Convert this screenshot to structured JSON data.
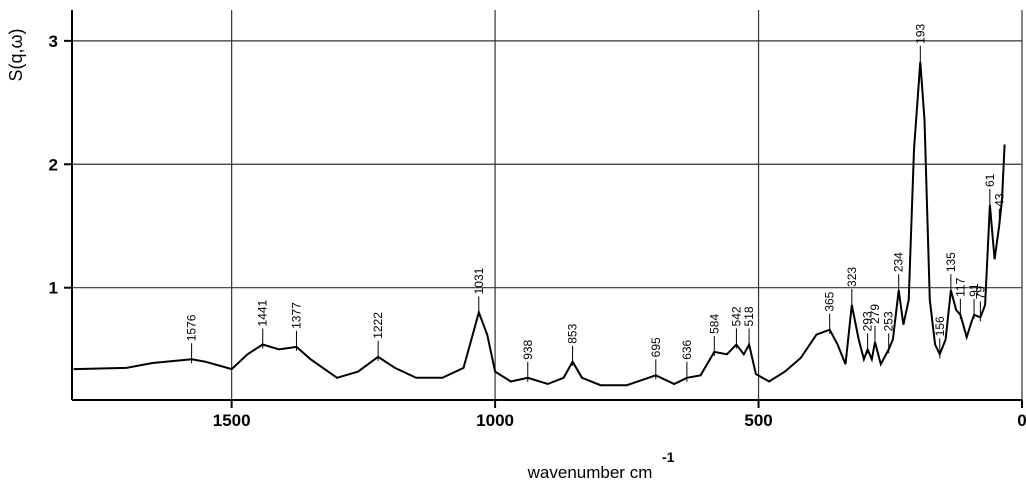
{
  "chart_data": {
    "type": "line",
    "y_label": "S(q,ω)",
    "x_label": "wavenumber cm",
    "x_label_superscript": "-1",
    "xlim": [
      1803,
      0
    ],
    "ylim": [
      0.09,
      3.25
    ],
    "xticks": [
      1500,
      1000,
      500,
      0
    ],
    "yticks": [
      1,
      2,
      3
    ],
    "grid": true,
    "color": "#000000",
    "x": [
      1800,
      1700,
      1650,
      1576,
      1550,
      1500,
      1470,
      1441,
      1410,
      1377,
      1350,
      1300,
      1260,
      1222,
      1190,
      1150,
      1100,
      1060,
      1045,
      1031,
      1015,
      1000,
      970,
      938,
      900,
      870,
      853,
      835,
      800,
      750,
      695,
      660,
      636,
      610,
      584,
      560,
      542,
      528,
      518,
      505,
      480,
      450,
      420,
      390,
      365,
      350,
      335,
      323,
      310,
      300,
      293,
      285,
      279,
      268,
      253,
      245,
      234,
      225,
      215,
      205,
      193,
      185,
      175,
      165,
      156,
      145,
      135,
      125,
      117,
      105,
      96,
      91,
      79,
      70,
      61,
      52,
      43,
      38,
      33
    ],
    "values": [
      0.34,
      0.35,
      0.39,
      0.42,
      0.4,
      0.34,
      0.46,
      0.54,
      0.5,
      0.52,
      0.42,
      0.27,
      0.32,
      0.44,
      0.35,
      0.27,
      0.27,
      0.35,
      0.58,
      0.8,
      0.62,
      0.32,
      0.24,
      0.27,
      0.22,
      0.27,
      0.4,
      0.27,
      0.21,
      0.21,
      0.29,
      0.22,
      0.27,
      0.29,
      0.48,
      0.46,
      0.54,
      0.46,
      0.54,
      0.3,
      0.24,
      0.32,
      0.43,
      0.62,
      0.66,
      0.54,
      0.38,
      0.86,
      0.58,
      0.42,
      0.5,
      0.42,
      0.56,
      0.38,
      0.5,
      0.58,
      0.98,
      0.7,
      0.9,
      2.12,
      2.83,
      2.36,
      0.9,
      0.54,
      0.46,
      0.58,
      0.98,
      0.82,
      0.78,
      0.6,
      0.72,
      0.78,
      0.76,
      0.86,
      1.67,
      1.23,
      1.51,
      1.71,
      2.16
    ],
    "peak_labels": [
      1576,
      1441,
      1377,
      1222,
      1031,
      938,
      853,
      695,
      636,
      584,
      542,
      518,
      365,
      323,
      293,
      279,
      253,
      234,
      193,
      156,
      135,
      117,
      91,
      79,
      61,
      43
    ]
  }
}
